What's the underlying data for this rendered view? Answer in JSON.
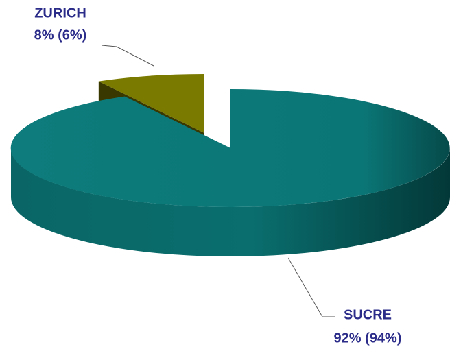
{
  "chart_data": {
    "type": "pie",
    "categories": [
      "ZURICH",
      "SUCRE"
    ],
    "values": [
      8,
      92
    ],
    "value_labels": [
      "8% (6%)",
      "92% (94%)"
    ],
    "colors": [
      "#7a7a00",
      "#0b7a7a"
    ]
  }
}
